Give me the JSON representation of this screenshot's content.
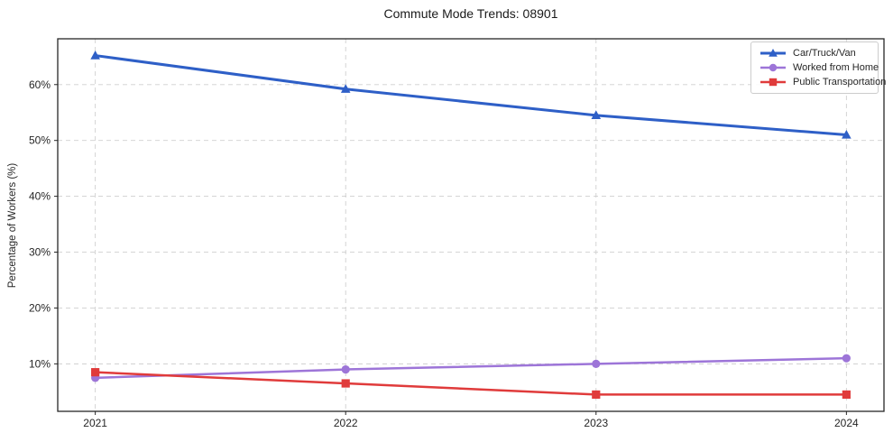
{
  "figure": {
    "background_color": "#ffffff",
    "text_color": "#262626",
    "grid_color": "#cfcfcf",
    "spine_color": "#262626"
  },
  "chart_data": {
    "type": "line",
    "title": "Commute Mode Trends: 08901",
    "xlabel": "",
    "ylabel": "Percentage of Workers (%)",
    "categories": [
      "2021",
      "2022",
      "2023",
      "2024"
    ],
    "series": [
      {
        "name": "Car/Truck/Van",
        "color": "#2e5fc7",
        "marker": "triangle",
        "linewidth": 3,
        "values": [
          65.2,
          59.2,
          54.5,
          51.0
        ]
      },
      {
        "name": "Worked from Home",
        "color": "#9d75d8",
        "marker": "circle",
        "linewidth": 2.5,
        "values": [
          7.5,
          9.0,
          10.0,
          11.0
        ]
      },
      {
        "name": "Public Transportation",
        "color": "#e03b3b",
        "marker": "square",
        "linewidth": 2.5,
        "values": [
          8.5,
          6.5,
          4.5,
          4.5
        ]
      }
    ],
    "yticks": [
      10,
      20,
      30,
      40,
      50,
      60
    ],
    "ytick_labels": [
      "10%",
      "20%",
      "30%",
      "40%",
      "50%",
      "60%"
    ],
    "ylim": [
      1.5,
      68.2
    ],
    "grid": true,
    "grid_style": "dashed",
    "legend_position": "upper right"
  }
}
